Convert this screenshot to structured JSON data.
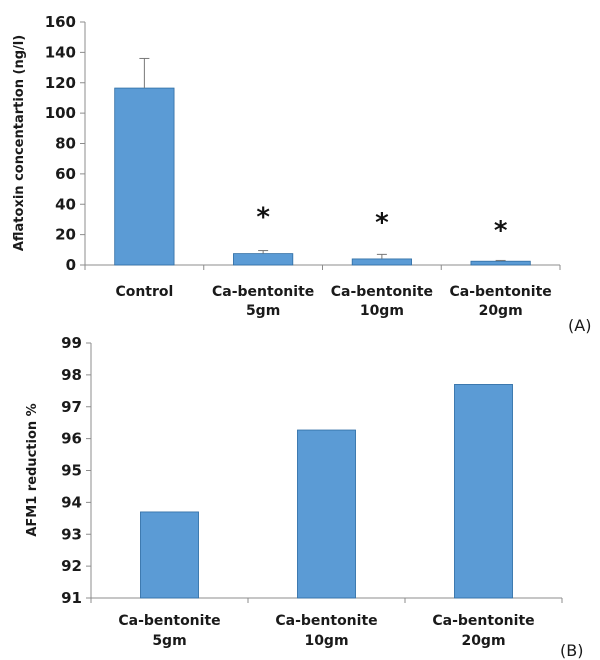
{
  "chart_data": [
    {
      "type": "bar",
      "panel_label": "(A)",
      "ylabel": "Aflatoxin concentartion (ng/l)",
      "categories": [
        [
          "Control"
        ],
        [
          "Ca-bentonite",
          "5gm"
        ],
        [
          "Ca-bentonite",
          "10gm"
        ],
        [
          "Ca-bentonite",
          "20gm"
        ]
      ],
      "values": [
        116.5,
        7.5,
        4.0,
        2.5
      ],
      "error": [
        19.5,
        2.0,
        3.0,
        0.5
      ],
      "annotations": [
        "",
        "*",
        "*",
        "*"
      ],
      "ylim": [
        0,
        160
      ],
      "yticks": [
        "0",
        "20",
        "40",
        "60",
        "80",
        "100",
        "120",
        "140",
        "160"
      ],
      "color": "#5b9bd5",
      "grid": false
    },
    {
      "type": "bar",
      "panel_label": "(B)",
      "ylabel": "AFM1 reduction %",
      "categories": [
        [
          "Ca-bentonite",
          "5gm"
        ],
        [
          "Ca-bentonite",
          "10gm"
        ],
        [
          "Ca-bentonite",
          "20gm"
        ]
      ],
      "values": [
        93.7,
        96.27,
        97.7
      ],
      "ylim": [
        91,
        99
      ],
      "yticks": [
        "91",
        "92",
        "93",
        "94",
        "95",
        "96",
        "97",
        "98",
        "99"
      ],
      "color": "#5b9bd5",
      "grid": false
    }
  ]
}
